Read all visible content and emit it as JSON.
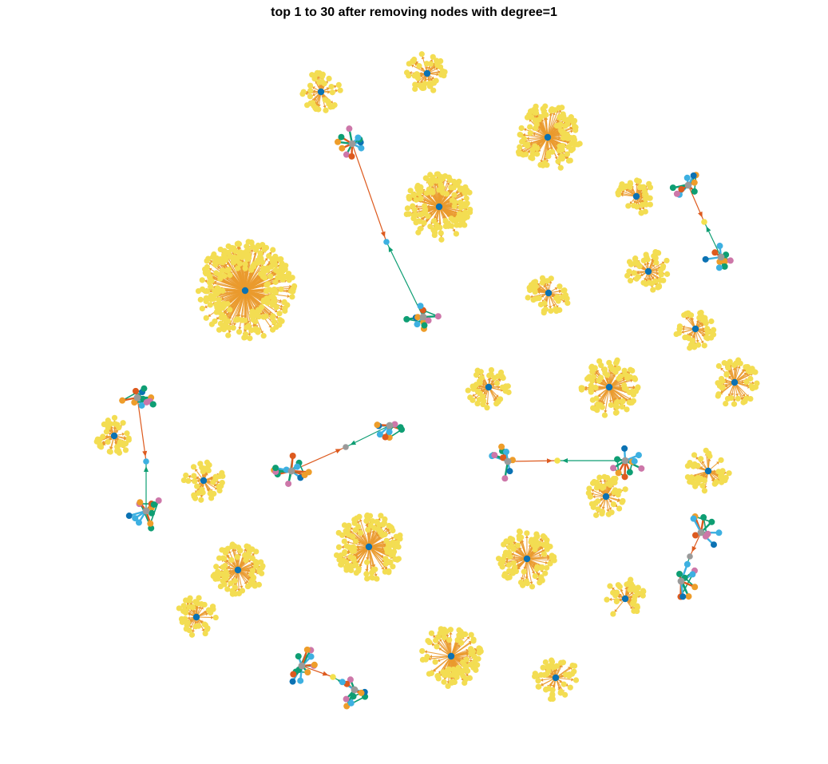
{
  "figure": {
    "title": "top 1 to 30 after removing nodes with degree=1"
  },
  "palette": {
    "hub": "#0b72b3",
    "leaf": "#f3dd52",
    "leaf_edge": "#ea9a2e",
    "orange": "#ee9d2a",
    "green": "#0e9e73",
    "cyan": "#3db0e1",
    "pink": "#cd77a9",
    "red_orange": "#dd5a1e",
    "blue": "#0b72b3",
    "yellow": "#f3e14e",
    "gray": "#9a9a9a",
    "bridge_green": "#0e9e73",
    "bridge_red": "#dd5a1e"
  },
  "graph": {
    "star_count": 23,
    "connected_pair_count": 7,
    "component_count": 30
  }
}
